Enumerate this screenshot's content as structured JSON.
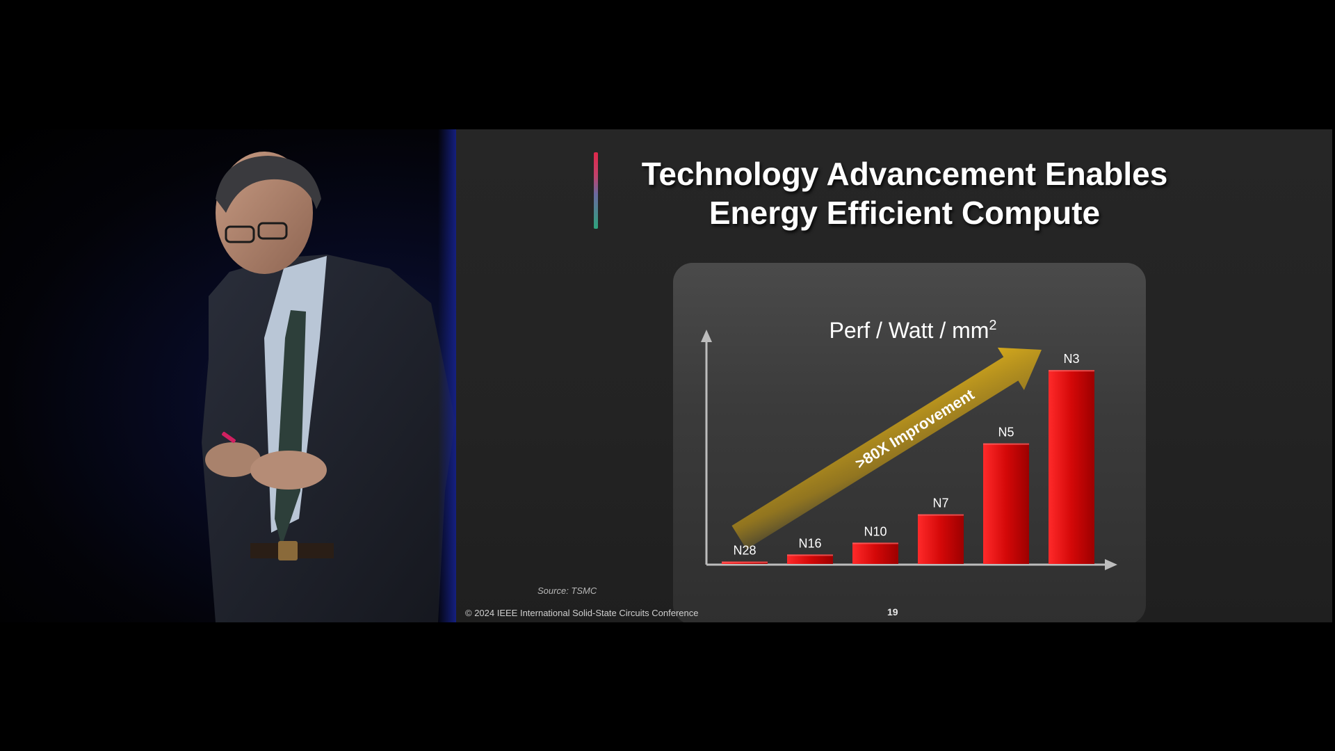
{
  "slide": {
    "title_line1": "Technology Advancement Enables",
    "title_line2": "Energy Efficient Compute",
    "source": "Source: TSMC",
    "footer": "© 2024 IEEE International Solid-State Circuits Conference",
    "page_number": "19"
  },
  "speaker": {
    "description_icon": "presenter-figure"
  },
  "chart_data": {
    "type": "bar",
    "title": "Perf / Watt / mm",
    "title_superscript": "2",
    "categories": [
      "N28",
      "N16",
      "N10",
      "N7",
      "N5",
      "N3"
    ],
    "values": [
      1,
      4,
      9,
      21,
      51,
      82
    ],
    "ylim": [
      0,
      90
    ],
    "xlabel": "",
    "ylabel": "",
    "annotation": ">80X Improvement",
    "grid": false,
    "colors": {
      "bar": "#d20a0a",
      "arrow": "#c9a21a",
      "axis": "#bdbdbd"
    }
  }
}
